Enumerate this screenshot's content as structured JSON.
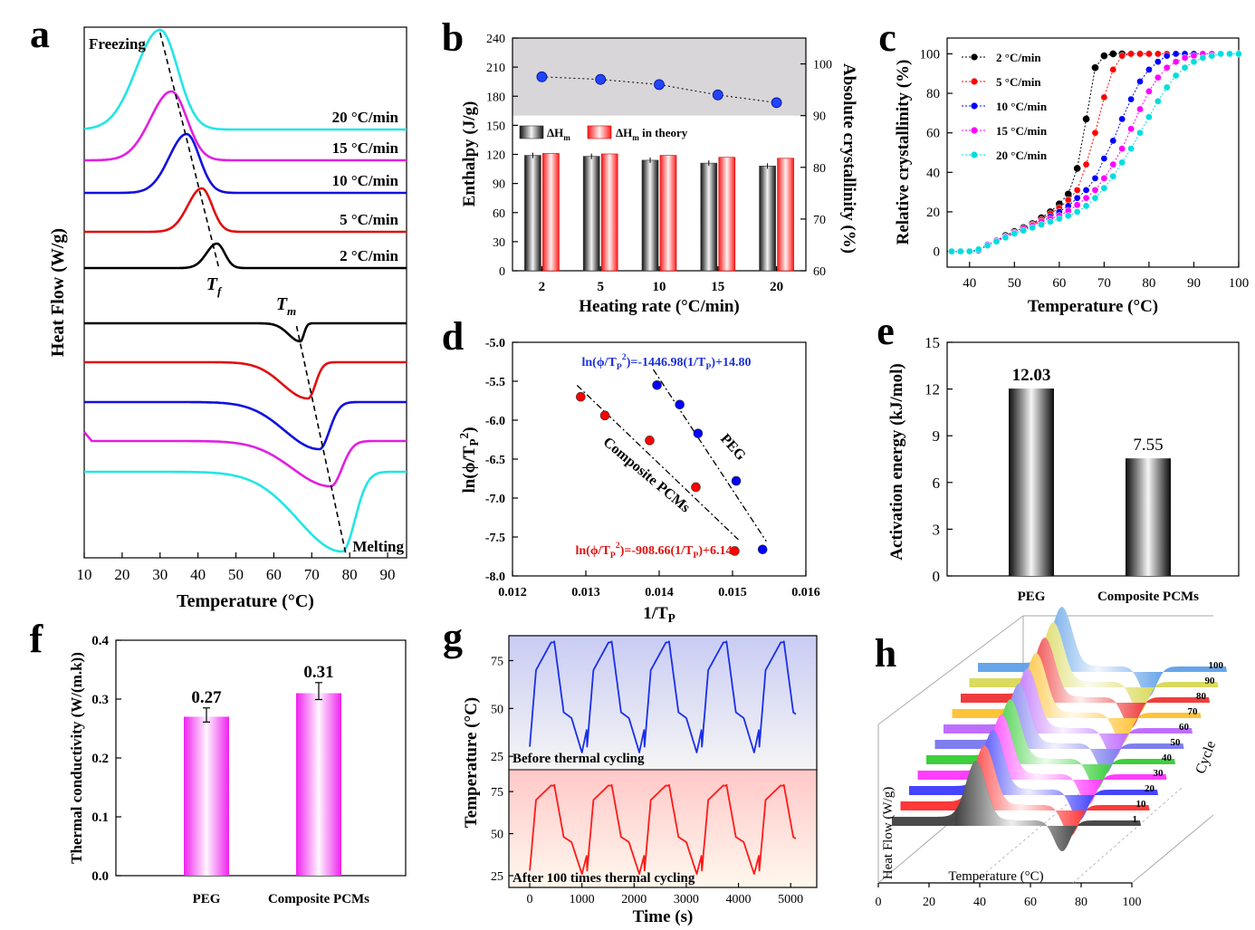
{
  "panel_letters": [
    "a",
    "b",
    "c",
    "d",
    "e",
    "f",
    "g",
    "h"
  ],
  "chart_data": [
    {
      "panel": "a",
      "type": "line",
      "xlabel": "Temperature (°C)",
      "ylabel": "Heat Flow (W/g)",
      "xlim": [
        10,
        95
      ],
      "xticks": [
        10,
        20,
        30,
        40,
        50,
        60,
        70,
        80,
        90
      ],
      "series_labels": [
        "20 °C/min",
        "15 °C/min",
        "10 °C/min",
        "5 °C/min",
        "2 °C/min"
      ],
      "colors": [
        "#22e5e5",
        "#e020e0",
        "#1010e0",
        "#e01010",
        "#000000"
      ],
      "annotations": {
        "freezing": "Freezing",
        "melting": "Melting",
        "tf_main": "T",
        "tf_sub": "f",
        "tm_main": "T",
        "tm_sub": "m"
      },
      "freezing_peaks_C": [
        30,
        33,
        37,
        41,
        45
      ],
      "melting_peaks_C": [
        78,
        75,
        72,
        69,
        67
      ]
    },
    {
      "panel": "b",
      "type": "bar",
      "xlabel": "Heating rate (°C/min)",
      "ylabel": "Enthalpy (J/g)",
      "y2label": "Absolute crystallinity (%)",
      "categories": [
        "2",
        "5",
        "10",
        "15",
        "20"
      ],
      "ylim": [
        0,
        240
      ],
      "yticks": [
        0,
        30,
        60,
        90,
        120,
        150,
        180,
        210,
        240
      ],
      "y2lim": [
        60,
        105
      ],
      "y2ticks": [
        60,
        70,
        80,
        90,
        100
      ],
      "legend": {
        "dh": "ΔH",
        "dh_sub": "m",
        "dht_sub": "m",
        "dht_suffix": " in theory"
      },
      "series": [
        {
          "name": "ΔHm",
          "values": [
            119,
            118,
            114,
            111,
            108
          ]
        },
        {
          "name": "ΔHm in theory",
          "values": [
            121,
            120.5,
            119,
            117,
            116
          ]
        }
      ],
      "crystallinity": [
        97.5,
        97,
        96,
        94,
        92.5
      ]
    },
    {
      "panel": "c",
      "type": "line",
      "xlabel": "Temperature (°C)",
      "ylabel": "Relative crystallinity (%)",
      "xlim": [
        35,
        100
      ],
      "xticks": [
        40,
        50,
        60,
        70,
        80,
        90,
        100
      ],
      "ylim": [
        -5,
        108
      ],
      "yticks": [
        0,
        20,
        40,
        60,
        80,
        100
      ],
      "series": [
        {
          "name": "2 °C/min",
          "color": "#000000",
          "x": [
            36,
            38,
            40,
            42,
            44,
            46,
            48,
            50,
            52,
            54,
            56,
            58,
            60,
            62,
            64,
            66,
            68,
            70,
            72,
            74,
            76,
            78,
            80
          ],
          "values": [
            0,
            0,
            0,
            0.5,
            3,
            5.5,
            8,
            10,
            12,
            14,
            17,
            20,
            24,
            29,
            42,
            67,
            93,
            99,
            100,
            100,
            100,
            100,
            100
          ]
        },
        {
          "name": "5 °C/min",
          "color": "#ff0000",
          "x": [
            36,
            38,
            40,
            42,
            44,
            46,
            48,
            50,
            52,
            54,
            56,
            58,
            60,
            62,
            64,
            66,
            68,
            70,
            72,
            74,
            76,
            78,
            80,
            82,
            84
          ],
          "values": [
            0,
            0,
            0,
            0.5,
            3,
            5.5,
            7.5,
            9.5,
            11.5,
            13.5,
            16,
            19,
            22,
            26,
            31,
            44,
            60,
            78,
            92,
            99,
            100,
            100,
            100,
            100,
            100
          ]
        },
        {
          "name": "10 °C/min",
          "color": "#0000ff",
          "x": [
            36,
            38,
            40,
            42,
            44,
            46,
            48,
            50,
            52,
            54,
            56,
            58,
            60,
            62,
            64,
            66,
            68,
            70,
            72,
            74,
            76,
            78,
            80,
            82,
            84,
            86,
            88,
            90,
            92
          ],
          "values": [
            0,
            0,
            0,
            0.5,
            3,
            5,
            7,
            9,
            11,
            13,
            15,
            17.5,
            20,
            23,
            27,
            31,
            37,
            47,
            56,
            67,
            77,
            86,
            92,
            96,
            99,
            100,
            100,
            100,
            100
          ]
        },
        {
          "name": "15 °C/min",
          "color": "#ff00ff",
          "x": [
            36,
            38,
            40,
            42,
            44,
            46,
            48,
            50,
            52,
            54,
            56,
            58,
            60,
            62,
            64,
            66,
            68,
            70,
            72,
            74,
            76,
            78,
            80,
            82,
            84,
            86,
            88,
            90,
            92,
            94
          ],
          "values": [
            0,
            0,
            0,
            1,
            3.5,
            5.5,
            7.5,
            9.5,
            11.5,
            13,
            15,
            16.5,
            18,
            20.5,
            23.5,
            27,
            31,
            37,
            44,
            52,
            62,
            72,
            81,
            88,
            93,
            96,
            98,
            99,
            100,
            100
          ]
        },
        {
          "name": "20 °C/min",
          "color": "#00dddd",
          "x": [
            36,
            38,
            40,
            42,
            44,
            46,
            48,
            50,
            52,
            54,
            56,
            58,
            60,
            62,
            64,
            66,
            68,
            70,
            72,
            74,
            76,
            78,
            80,
            82,
            84,
            86,
            88,
            90,
            92,
            94,
            96,
            98,
            100
          ],
          "values": [
            0,
            0,
            0,
            1,
            3,
            5,
            7,
            9,
            10.5,
            12,
            13.5,
            15,
            16.5,
            18,
            20,
            23,
            27,
            32,
            38,
            45,
            52,
            60,
            68,
            76,
            83,
            89,
            93,
            96,
            98,
            99,
            100,
            100,
            100
          ]
        }
      ]
    },
    {
      "panel": "d",
      "type": "scatter",
      "xlabel": "1/T",
      "xlabel_sub": "P",
      "ylabel": "ln(ϕ/T",
      "ylabel_sub": "P",
      "ylabel_sup": "2",
      "xlim": [
        0.012,
        0.016
      ],
      "xticks": [
        "0.012",
        "0.013",
        "0.014",
        "0.015",
        "0.016"
      ],
      "ylim": [
        -8.0,
        -5.0
      ],
      "yticks": [
        "-5.0",
        "-5.5",
        "-6.0",
        "-6.5",
        "-7.0",
        "-7.5",
        "-8.0"
      ],
      "series": [
        {
          "name": "PEG",
          "color": "#0000ff",
          "x": [
            0.01397,
            0.01428,
            0.01453,
            0.01505,
            0.01541
          ],
          "values": [
            -5.55,
            -5.8,
            -6.17,
            -6.78,
            -7.66
          ],
          "fit": {
            "slope": -1446.98,
            "intercept": 14.8
          }
        },
        {
          "name": "Composite PCMs",
          "color": "#ff0000",
          "x": [
            0.01293,
            0.01326,
            0.01387,
            0.0145,
            0.01503
          ],
          "values": [
            -5.7,
            -5.94,
            -6.26,
            -6.86,
            -7.68
          ],
          "fit": {
            "slope": -908.66,
            "intercept": 6.14
          }
        }
      ],
      "equations": {
        "peg": {
          "a": "ln(ϕ/T",
          "sub1": "P",
          "sup": "2",
          "b": ")=-1446.98(1/T",
          "sub2": "P",
          "c": ")+14.80"
        },
        "comp": {
          "a": "ln(ϕ/T",
          "sub1": "P",
          "sup": "2",
          "b": ")=-908.66(1/T",
          "sub2": "P",
          "c": ")+6.14"
        }
      }
    },
    {
      "panel": "e",
      "type": "bar",
      "ylabel": "Activation energy (kJ/mol)",
      "categories": [
        "PEG",
        "Composite PCMs"
      ],
      "values": [
        12.03,
        7.55
      ],
      "value_labels": [
        "12.03",
        "7.55"
      ],
      "ylim": [
        0,
        15
      ],
      "yticks": [
        0,
        3,
        6,
        9,
        12,
        15
      ]
    },
    {
      "panel": "f",
      "type": "bar",
      "ylabel": "Thermal conductivity (W/(m.k))",
      "categories": [
        "PEG",
        "Composite PCMs"
      ],
      "values": [
        0.27,
        0.31
      ],
      "value_labels": [
        "0.27",
        "0.31"
      ],
      "errors": [
        0.015,
        0.018
      ],
      "ylim": [
        0,
        0.4
      ],
      "yticks": [
        "0.0",
        "0.1",
        "0.2",
        "0.3",
        "0.4"
      ]
    },
    {
      "panel": "g",
      "type": "line",
      "xlabel": "Time (s)",
      "ylabel": "Temperature (°C)",
      "xlim": [
        -400,
        5500
      ],
      "xticks": [
        0,
        1000,
        2000,
        3000,
        4000,
        5000
      ],
      "ylim": [
        18,
        88
      ],
      "yticks": [
        25,
        50,
        75
      ],
      "subplots": [
        {
          "label": "Before thermal cycling",
          "color": "#1a2fe8",
          "peak": 85,
          "min": 27,
          "period": 1100,
          "start": 30
        },
        {
          "label": "After 100 times thermal cycling",
          "color": "#ff1a1a",
          "peak": 79,
          "min": 26,
          "period": 1100,
          "start": 28
        }
      ]
    },
    {
      "panel": "h",
      "type": "area",
      "xlabel": "Temperature (°C)",
      "ylabel": "Heat Flow (W/g)",
      "zlabel": "Cycle",
      "xticks": [
        0,
        20,
        40,
        60,
        80,
        100
      ],
      "cycles": [
        "1",
        "10",
        "20",
        "30",
        "40",
        "50",
        "60",
        "70",
        "80",
        "90",
        "100"
      ],
      "colors": [
        "#404040",
        "#ff2d2d",
        "#3b3bff",
        "#ff33ff",
        "#33cc33",
        "#7777ee",
        "#bb66ff",
        "#ffc02d",
        "#ee3333",
        "#d8d855",
        "#5fa0e8"
      ]
    }
  ]
}
